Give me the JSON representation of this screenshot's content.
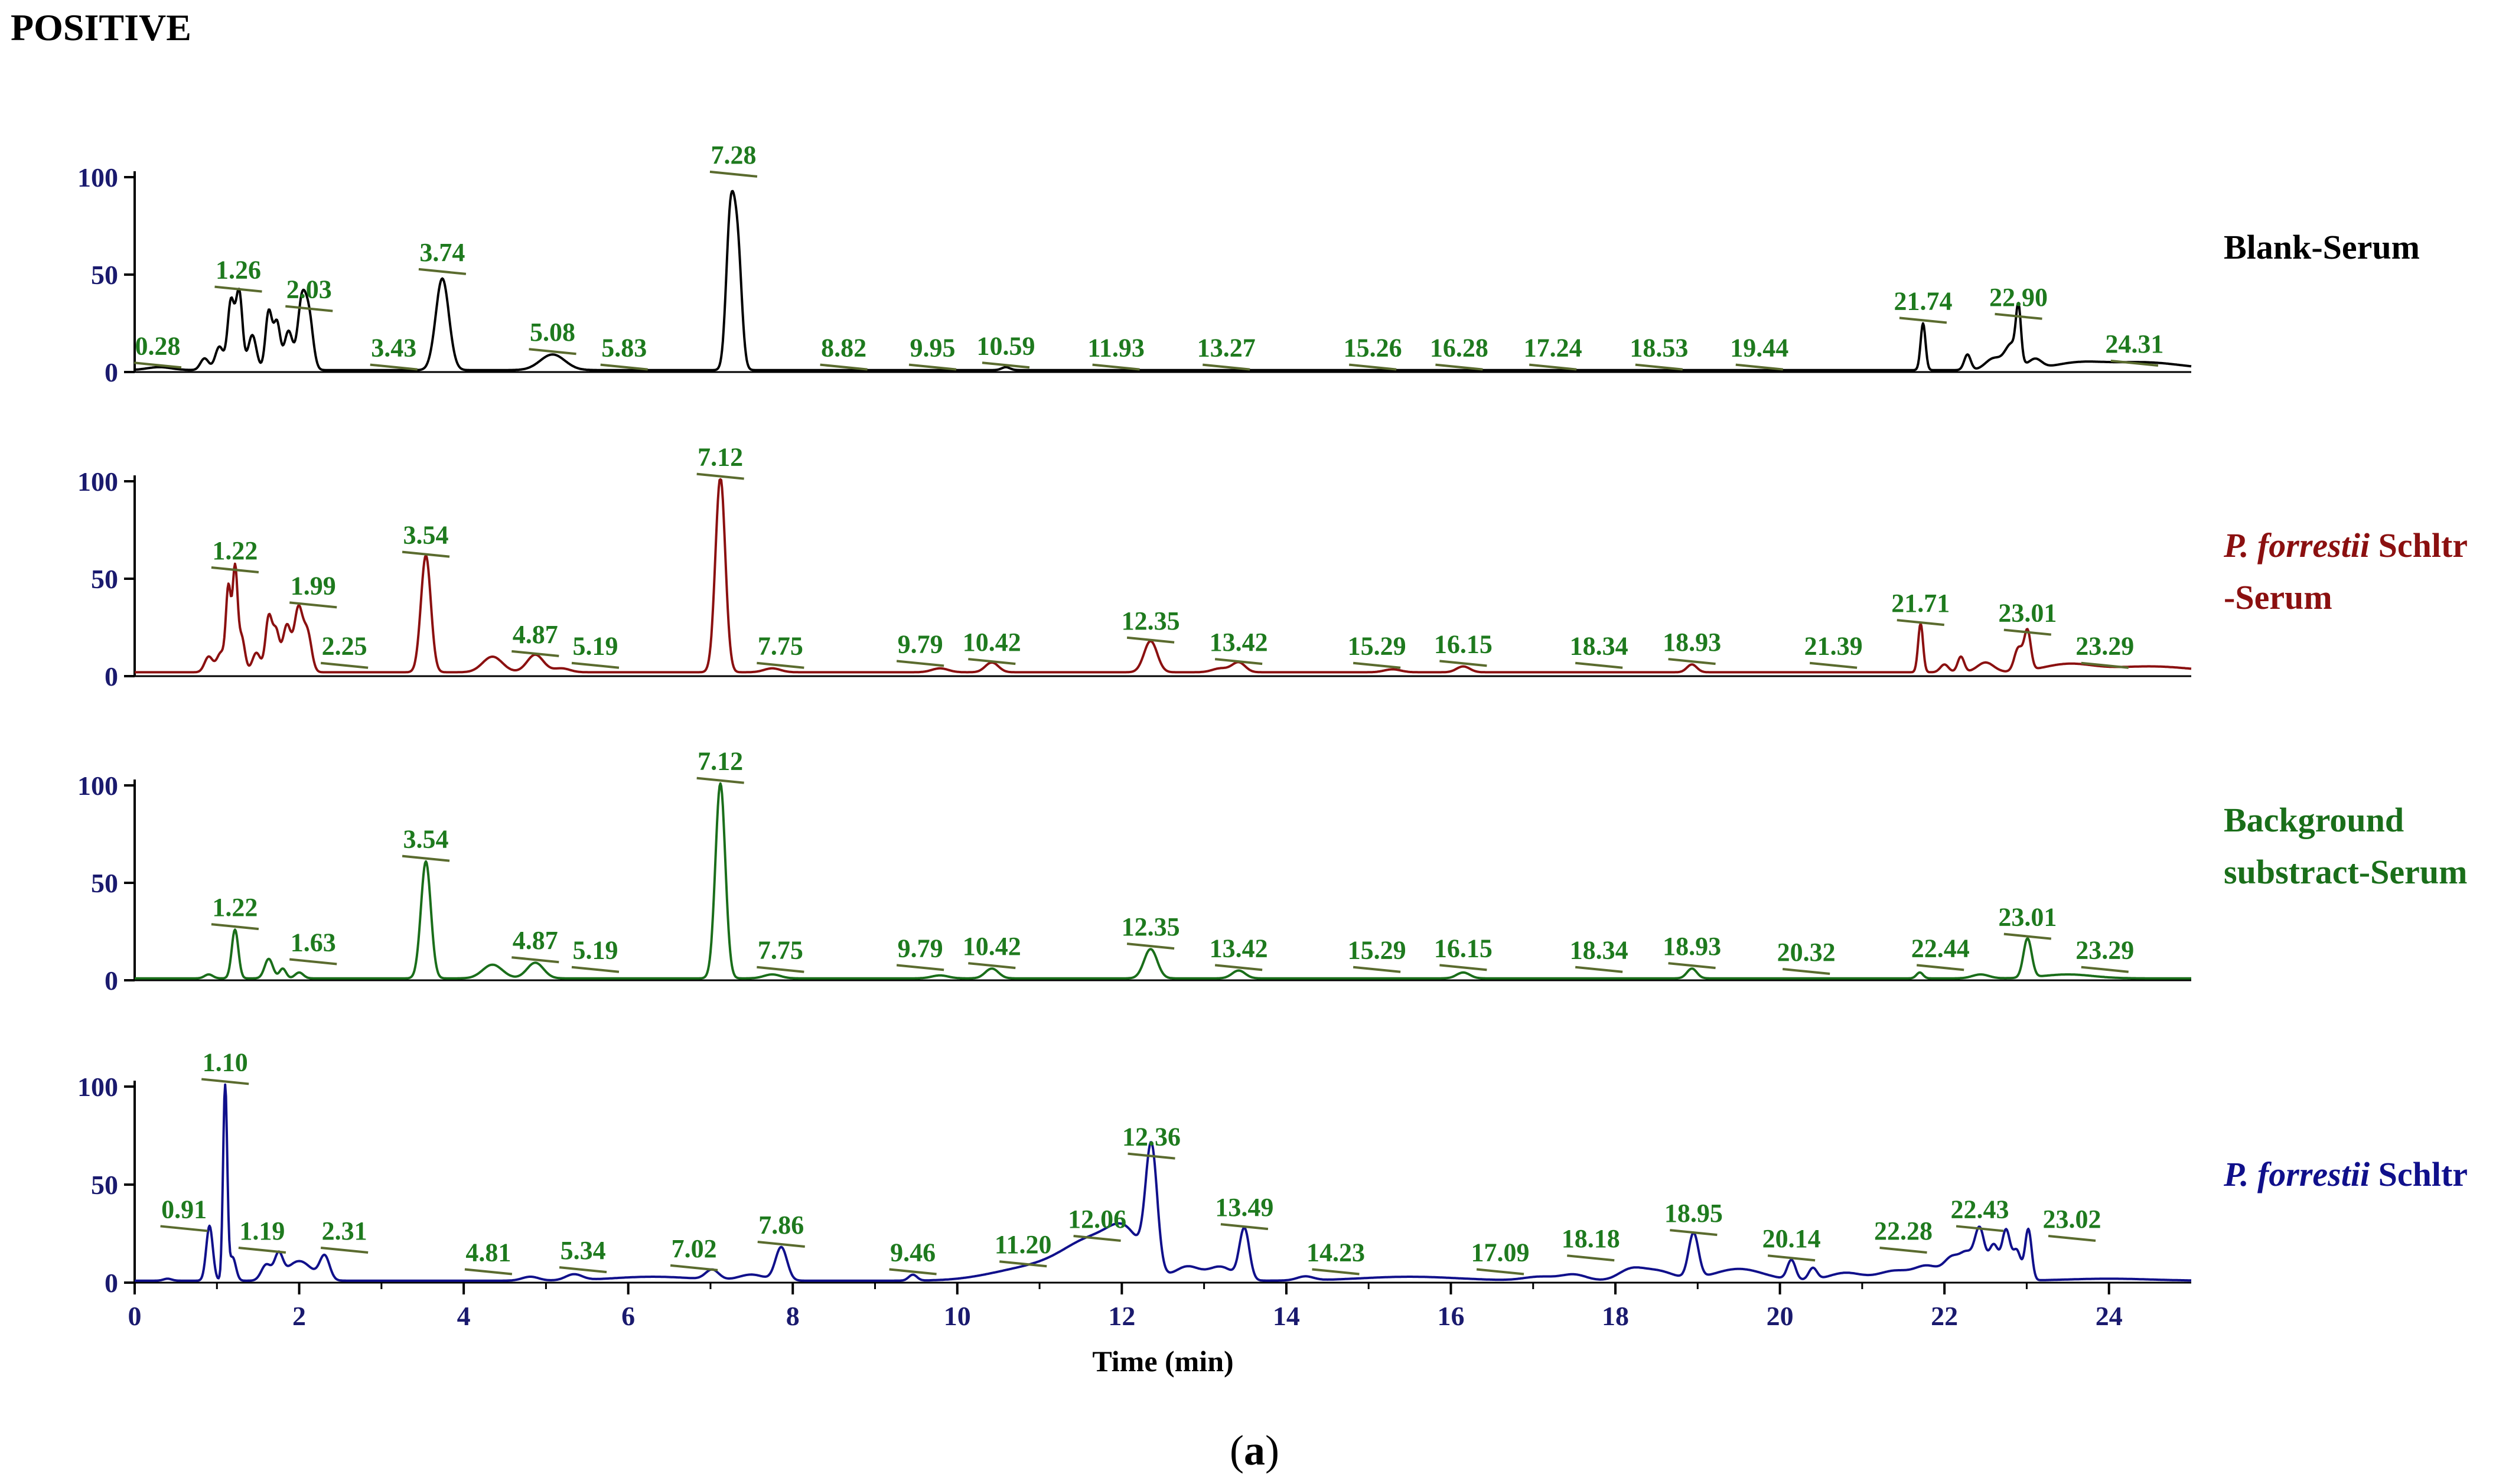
{
  "title": "POSITIVE",
  "caption": {
    "open": "(",
    "letter": "a",
    "close": ")"
  },
  "chart_data": {
    "type": "line",
    "xlabel": "Time (min)",
    "xlim": [
      0,
      25
    ],
    "x_ticks": [
      0,
      2,
      4,
      6,
      8,
      10,
      12,
      14,
      16,
      18,
      20,
      22,
      24
    ],
    "ylim": [
      0,
      100
    ],
    "y_ticks": [
      0,
      50,
      100
    ],
    "label_color": "#1e7a1e",
    "annotation_line_color": "#5a6b2e",
    "panels": [
      {
        "key": "blank",
        "color": "#000000",
        "legend": {
          "line1_italic": "",
          "line1_rest": "Blank-Serum",
          "line2": ""
        },
        "baseline": 1,
        "peaks": [
          [
            0.3,
            1.5,
            0.15
          ],
          [
            0.85,
            6,
            0.05
          ],
          [
            1.03,
            12,
            0.05
          ],
          [
            1.17,
            35,
            0.04
          ],
          [
            1.27,
            40,
            0.04
          ],
          [
            1.43,
            18,
            0.05
          ],
          [
            1.63,
            30,
            0.04
          ],
          [
            1.73,
            24,
            0.04
          ],
          [
            1.87,
            20,
            0.05
          ],
          [
            2.03,
            34,
            0.05
          ],
          [
            2.12,
            26,
            0.05
          ],
          [
            3.74,
            47,
            0.08
          ],
          [
            5.08,
            8,
            0.15
          ],
          [
            7.24,
            75,
            0.05
          ],
          [
            7.33,
            60,
            0.05
          ],
          [
            10.59,
            1.5,
            0.05
          ],
          [
            21.74,
            24,
            0.03
          ],
          [
            22.28,
            8,
            0.04
          ],
          [
            22.6,
            6,
            0.1
          ],
          [
            22.82,
            13,
            0.08
          ],
          [
            22.9,
            26,
            0.03
          ],
          [
            23.1,
            5,
            0.08
          ],
          [
            23.6,
            3,
            0.3
          ],
          [
            24.4,
            4,
            0.5
          ]
        ],
        "labels": [
          {
            "t": "0.28",
            "x": 0.28,
            "y": 9
          },
          {
            "t": "1.26",
            "x": 1.26,
            "y": 48
          },
          {
            "t": "2.03",
            "x": 2.12,
            "y": 38
          },
          {
            "t": "3.43",
            "x": 3.15,
            "y": 8
          },
          {
            "t": "3.74",
            "x": 3.74,
            "y": 57
          },
          {
            "t": "5.08",
            "x": 5.08,
            "y": 16
          },
          {
            "t": "5.83",
            "x": 5.95,
            "y": 8
          },
          {
            "t": "7.28",
            "x": 7.28,
            "y": 107
          },
          {
            "t": "8.82",
            "x": 8.62,
            "y": 8
          },
          {
            "t": "9.95",
            "x": 9.7,
            "y": 8
          },
          {
            "t": "10.59",
            "x": 10.59,
            "y": 9
          },
          {
            "t": "11.93",
            "x": 11.93,
            "y": 8
          },
          {
            "t": "13.27",
            "x": 13.27,
            "y": 8
          },
          {
            "t": "15.26",
            "x": 15.05,
            "y": 8
          },
          {
            "t": "16.28",
            "x": 16.1,
            "y": 8
          },
          {
            "t": "17.24",
            "x": 17.24,
            "y": 8
          },
          {
            "t": "18.53",
            "x": 18.53,
            "y": 8
          },
          {
            "t": "19.44",
            "x": 19.75,
            "y": 8
          },
          {
            "t": "21.74",
            "x": 21.74,
            "y": 32
          },
          {
            "t": "22.90",
            "x": 22.9,
            "y": 34
          },
          {
            "t": "24.31",
            "x": 24.31,
            "y": 10
          }
        ]
      },
      {
        "key": "pf-serum",
        "color": "#8b1010",
        "legend": {
          "line1_italic": "P. forrestii",
          "line1_rest": " Schltr",
          "line2": "-Serum"
        },
        "baseline": 2,
        "peaks": [
          [
            0.9,
            8,
            0.05
          ],
          [
            1.05,
            10,
            0.05
          ],
          [
            1.14,
            42,
            0.03
          ],
          [
            1.22,
            52,
            0.03
          ],
          [
            1.3,
            18,
            0.04
          ],
          [
            1.48,
            10,
            0.05
          ],
          [
            1.63,
            28,
            0.04
          ],
          [
            1.72,
            20,
            0.04
          ],
          [
            1.85,
            24,
            0.05
          ],
          [
            1.99,
            32,
            0.05
          ],
          [
            2.1,
            20,
            0.05
          ],
          [
            3.54,
            60,
            0.06
          ],
          [
            4.35,
            8,
            0.12
          ],
          [
            4.87,
            9,
            0.1
          ],
          [
            5.19,
            2,
            0.1
          ],
          [
            7.12,
            100,
            0.06
          ],
          [
            7.75,
            2,
            0.1
          ],
          [
            9.79,
            2,
            0.1
          ],
          [
            10.42,
            5,
            0.08
          ],
          [
            12.35,
            16,
            0.08
          ],
          [
            13.2,
            2,
            0.1
          ],
          [
            13.42,
            5,
            0.08
          ],
          [
            15.29,
            1.5,
            0.1
          ],
          [
            16.15,
            3,
            0.08
          ],
          [
            18.93,
            4,
            0.06
          ],
          [
            21.71,
            25,
            0.03
          ],
          [
            22.0,
            4,
            0.05
          ],
          [
            22.2,
            8,
            0.04
          ],
          [
            22.5,
            5,
            0.1
          ],
          [
            22.9,
            12,
            0.05
          ],
          [
            23.01,
            20,
            0.04
          ],
          [
            23.5,
            4,
            0.3
          ],
          [
            24.5,
            3,
            0.5
          ]
        ],
        "labels": [
          {
            "t": "1.22",
            "x": 1.22,
            "y": 60
          },
          {
            "t": "1.99",
            "x": 2.17,
            "y": 42
          },
          {
            "t": "2.25",
            "x": 2.55,
            "y": 11
          },
          {
            "t": "3.54",
            "x": 3.54,
            "y": 68
          },
          {
            "t": "4.87",
            "x": 4.87,
            "y": 17
          },
          {
            "t": "5.19",
            "x": 5.6,
            "y": 11
          },
          {
            "t": "7.12",
            "x": 7.12,
            "y": 108
          },
          {
            "t": "7.75",
            "x": 7.85,
            "y": 11
          },
          {
            "t": "9.79",
            "x": 9.55,
            "y": 12
          },
          {
            "t": "10.42",
            "x": 10.42,
            "y": 13
          },
          {
            "t": "12.35",
            "x": 12.35,
            "y": 24
          },
          {
            "t": "13.42",
            "x": 13.42,
            "y": 13
          },
          {
            "t": "15.29",
            "x": 15.1,
            "y": 11
          },
          {
            "t": "16.15",
            "x": 16.15,
            "y": 12
          },
          {
            "t": "18.34",
            "x": 17.8,
            "y": 11
          },
          {
            "t": "18.93",
            "x": 18.93,
            "y": 13
          },
          {
            "t": "21.39",
            "x": 20.65,
            "y": 11
          },
          {
            "t": "21.71",
            "x": 21.71,
            "y": 33
          },
          {
            "t": "23.01",
            "x": 23.01,
            "y": 28
          },
          {
            "t": "23.29",
            "x": 23.95,
            "y": 11
          }
        ]
      },
      {
        "key": "bg-serum",
        "color": "#1a6e1a",
        "legend": {
          "line1_italic": "",
          "line1_rest": "Background",
          "line2": "substract-Serum"
        },
        "baseline": 1,
        "peaks": [
          [
            0.9,
            2,
            0.05
          ],
          [
            1.22,
            25,
            0.04
          ],
          [
            1.63,
            10,
            0.05
          ],
          [
            1.8,
            5,
            0.04
          ],
          [
            2.0,
            3,
            0.05
          ],
          [
            3.54,
            60,
            0.06
          ],
          [
            4.35,
            7,
            0.12
          ],
          [
            4.87,
            8,
            0.1
          ],
          [
            7.12,
            100,
            0.06
          ],
          [
            7.75,
            2,
            0.1
          ],
          [
            9.79,
            1.5,
            0.1
          ],
          [
            10.42,
            5,
            0.08
          ],
          [
            12.35,
            15,
            0.08
          ],
          [
            13.42,
            4,
            0.08
          ],
          [
            16.15,
            3,
            0.08
          ],
          [
            18.93,
            5,
            0.06
          ],
          [
            21.7,
            3,
            0.04
          ],
          [
            22.44,
            2,
            0.1
          ],
          [
            23.01,
            20,
            0.05
          ],
          [
            23.5,
            2,
            0.3
          ]
        ],
        "labels": [
          {
            "t": "1.22",
            "x": 1.22,
            "y": 33
          },
          {
            "t": "1.63",
            "x": 2.17,
            "y": 15
          },
          {
            "t": "3.54",
            "x": 3.54,
            "y": 68
          },
          {
            "t": "4.87",
            "x": 4.87,
            "y": 16
          },
          {
            "t": "5.19",
            "x": 5.6,
            "y": 11
          },
          {
            "t": "7.12",
            "x": 7.12,
            "y": 108
          },
          {
            "t": "7.75",
            "x": 7.85,
            "y": 11
          },
          {
            "t": "9.79",
            "x": 9.55,
            "y": 12
          },
          {
            "t": "10.42",
            "x": 10.42,
            "y": 13
          },
          {
            "t": "12.35",
            "x": 12.35,
            "y": 23
          },
          {
            "t": "13.42",
            "x": 13.42,
            "y": 12
          },
          {
            "t": "15.29",
            "x": 15.1,
            "y": 11
          },
          {
            "t": "16.15",
            "x": 16.15,
            "y": 12
          },
          {
            "t": "18.34",
            "x": 17.8,
            "y": 11
          },
          {
            "t": "18.93",
            "x": 18.93,
            "y": 13
          },
          {
            "t": "20.32",
            "x": 20.32,
            "y": 10
          },
          {
            "t": "22.44",
            "x": 21.95,
            "y": 12
          },
          {
            "t": "23.01",
            "x": 23.01,
            "y": 28
          },
          {
            "t": "23.29",
            "x": 23.95,
            "y": 11
          }
        ]
      },
      {
        "key": "pf",
        "color": "#10108b",
        "legend": {
          "line1_italic": "P. forrestii",
          "line1_rest": " Schltr",
          "line2": ""
        },
        "baseline": 1,
        "peaks": [
          [
            0.4,
            1,
            0.05
          ],
          [
            0.91,
            28,
            0.04
          ],
          [
            1.1,
            100,
            0.025
          ],
          [
            1.19,
            12,
            0.04
          ],
          [
            1.6,
            8,
            0.06
          ],
          [
            1.75,
            12,
            0.05
          ],
          [
            2.0,
            10,
            0.15
          ],
          [
            2.31,
            12,
            0.06
          ],
          [
            4.81,
            2,
            0.1
          ],
          [
            5.34,
            3,
            0.1
          ],
          [
            6.3,
            2,
            0.5
          ],
          [
            7.02,
            5,
            0.08
          ],
          [
            7.5,
            3,
            0.15
          ],
          [
            7.86,
            17,
            0.07
          ],
          [
            9.46,
            3,
            0.05
          ],
          [
            10.6,
            2,
            0.4
          ],
          [
            11.2,
            7,
            0.5
          ],
          [
            11.7,
            17,
            0.35
          ],
          [
            12.06,
            16,
            0.2
          ],
          [
            12.36,
            62,
            0.07
          ],
          [
            12.8,
            7,
            0.15
          ],
          [
            13.2,
            7,
            0.15
          ],
          [
            13.49,
            26,
            0.06
          ],
          [
            14.23,
            2,
            0.1
          ],
          [
            15.5,
            2,
            0.6
          ],
          [
            17.09,
            2,
            0.2
          ],
          [
            17.5,
            3,
            0.15
          ],
          [
            18.18,
            5,
            0.15
          ],
          [
            18.5,
            5,
            0.2
          ],
          [
            18.95,
            23,
            0.06
          ],
          [
            19.5,
            6,
            0.3
          ],
          [
            20.14,
            10,
            0.05
          ],
          [
            20.4,
            6,
            0.05
          ],
          [
            20.8,
            4,
            0.2
          ],
          [
            21.4,
            5,
            0.2
          ],
          [
            21.8,
            7,
            0.15
          ],
          [
            22.1,
            11,
            0.1
          ],
          [
            22.28,
            12,
            0.08
          ],
          [
            22.43,
            25,
            0.06
          ],
          [
            22.6,
            18,
            0.06
          ],
          [
            22.75,
            25,
            0.05
          ],
          [
            22.88,
            15,
            0.05
          ],
          [
            23.02,
            26,
            0.04
          ],
          [
            24.0,
            1,
            0.5
          ]
        ],
        "labels": [
          {
            "t": "0.91",
            "x": 0.6,
            "y": 33
          },
          {
            "t": "1.10",
            "x": 1.1,
            "y": 108
          },
          {
            "t": "1.19",
            "x": 1.55,
            "y": 22
          },
          {
            "t": "2.31",
            "x": 2.55,
            "y": 22
          },
          {
            "t": "4.81",
            "x": 4.3,
            "y": 11
          },
          {
            "t": "5.34",
            "x": 5.45,
            "y": 12
          },
          {
            "t": "7.02",
            "x": 6.8,
            "y": 13
          },
          {
            "t": "7.86",
            "x": 7.86,
            "y": 25
          },
          {
            "t": "9.46",
            "x": 9.46,
            "y": 11
          },
          {
            "t": "11.20",
            "x": 10.8,
            "y": 15
          },
          {
            "t": "12.06",
            "x": 11.7,
            "y": 28
          },
          {
            "t": "12.36",
            "x": 12.36,
            "y": 70
          },
          {
            "t": "13.49",
            "x": 13.49,
            "y": 34
          },
          {
            "t": "14.23",
            "x": 14.6,
            "y": 11
          },
          {
            "t": "17.09",
            "x": 16.6,
            "y": 11
          },
          {
            "t": "18.18",
            "x": 17.7,
            "y": 18
          },
          {
            "t": "18.95",
            "x": 18.95,
            "y": 31
          },
          {
            "t": "20.14",
            "x": 20.14,
            "y": 18
          },
          {
            "t": "22.28",
            "x": 21.5,
            "y": 22
          },
          {
            "t": "22.43",
            "x": 22.43,
            "y": 33
          },
          {
            "t": "23.02",
            "x": 23.55,
            "y": 28
          }
        ]
      }
    ]
  }
}
